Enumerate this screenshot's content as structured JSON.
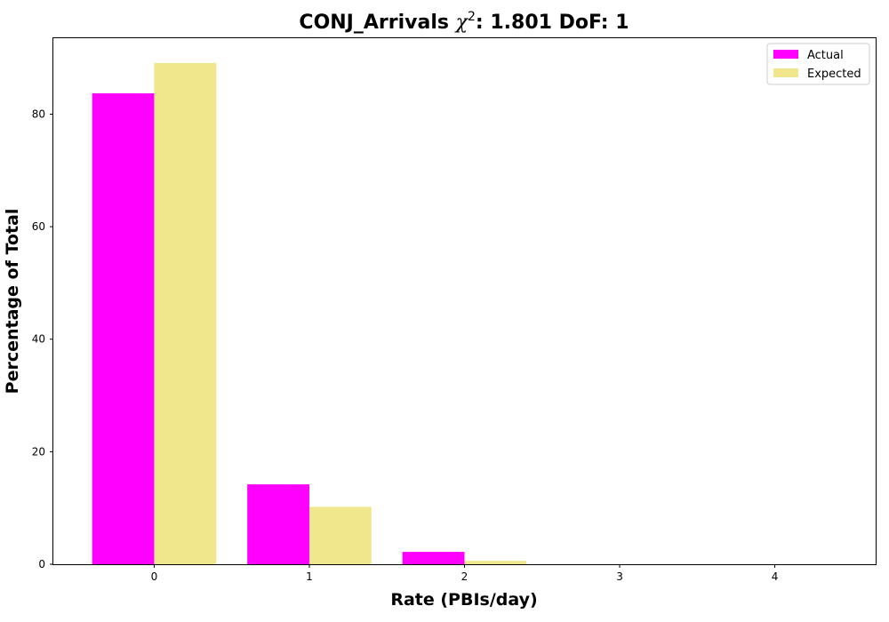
{
  "chart_data": {
    "type": "bar",
    "title": "CONJ_Arrivals",
    "title_symbol": "χ",
    "title_superscript": "2",
    "title_suffix": ": 1.801 DoF: 1",
    "xlabel": "Rate (PBIs/day)",
    "ylabel": "Percentage of Total",
    "categories": [
      "0",
      "1",
      "2",
      "3",
      "4"
    ],
    "x": [
      0,
      1,
      2,
      3,
      4
    ],
    "xlim": [
      -0.65,
      4.65
    ],
    "ylim": [
      0,
      93.5
    ],
    "yticks": [
      0,
      20,
      40,
      60,
      80
    ],
    "grid": false,
    "legend_position": "top-right",
    "series": [
      {
        "name": "Actual",
        "color": "#ff00ff",
        "values": [
          83.7,
          14.2,
          2.2,
          0,
          0
        ]
      },
      {
        "name": "Expected",
        "color": "#f0e68c",
        "values": [
          89.1,
          10.2,
          0.6,
          0,
          0
        ]
      }
    ]
  }
}
